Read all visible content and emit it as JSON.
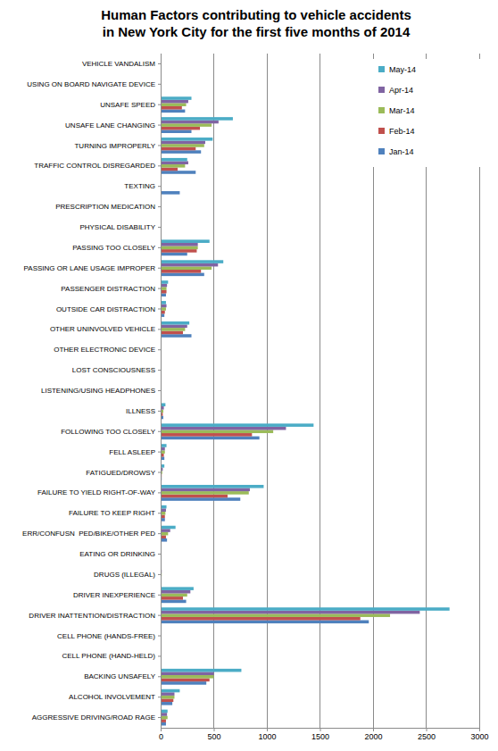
{
  "chart_data": {
    "type": "bar",
    "orientation": "horizontal",
    "title": "Human Factors contributing to vehicle accidents\nin New York City for the first five months of 2014",
    "categories": [
      "VEHICLE VANDALISM",
      "USING ON BOARD NAVIGATE DEVICE",
      "UNSAFE SPEED",
      "UNSAFE LANE CHANGING",
      "TURNING IMPROPERLY",
      "TRAFFIC CONTROL DISREGARDED",
      "TEXTING",
      "PRESCRIPTION MEDICATION",
      "PHYSICAL DISABILITY",
      "PASSING TOO CLOSELY",
      "PASSING OR LANE USAGE IMPROPER",
      "PASSENGER DISTRACTION",
      "OUTSIDE CAR DISTRACTION",
      "OTHER UNINVOLVED VEHICLE",
      "OTHER ELECTRONIC DEVICE",
      "LOST CONSCIOUSNESS",
      "LISTENING/USING HEADPHONES",
      "ILLNESS",
      "FOLLOWING TOO CLOSELY",
      "FELL ASLEEP",
      "FATIGUED/DROWSY",
      "FAILURE TO YIELD RIGHT-OF-WAY",
      "FAILURE TO KEEP RIGHT",
      "ERR/CONFUSN  PED/BIKE/OTHER PED",
      "EATING OR DRINKING",
      "DRUGS (ILLEGAL)",
      "DRIVER INEXPERIENCE",
      "DRIVER INATTENTION/DISTRACTION",
      "CELL PHONE (HANDS-FREE)",
      "CELL PHONE (HAND-HELD)",
      "BACKING UNSAFELY",
      "ALCOHOL INVOLVEMENT",
      "AGGRESSIVE DRIVING/ROAD RAGE"
    ],
    "series": [
      {
        "name": "Jan-14",
        "color": "#4f81bd",
        "values": [
          1,
          1,
          230,
          290,
          380,
          330,
          180,
          3,
          5,
          250,
          410,
          50,
          35,
          290,
          3,
          8,
          1,
          25,
          930,
          35,
          10,
          750,
          40,
          60,
          2,
          8,
          240,
          1960,
          3,
          5,
          430,
          110,
          50
        ]
      },
      {
        "name": "Feb-14",
        "color": "#c0504d",
        "values": [
          1,
          1,
          200,
          370,
          330,
          160,
          3,
          2,
          3,
          340,
          380,
          55,
          40,
          210,
          2,
          6,
          1,
          20,
          860,
          30,
          10,
          630,
          40,
          50,
          2,
          6,
          210,
          1880,
          3,
          5,
          460,
          120,
          50
        ]
      },
      {
        "name": "Mar-14",
        "color": "#9bbb59",
        "values": [
          1,
          1,
          240,
          480,
          410,
          230,
          3,
          2,
          4,
          350,
          480,
          55,
          50,
          230,
          3,
          7,
          1,
          25,
          1060,
          40,
          15,
          830,
          45,
          70,
          2,
          10,
          250,
          2160,
          3,
          6,
          500,
          130,
          65
        ]
      },
      {
        "name": "Apr-14",
        "color": "#8064a2",
        "values": [
          1,
          1,
          260,
          545,
          420,
          260,
          4,
          3,
          5,
          350,
          540,
          60,
          55,
          250,
          3,
          8,
          1,
          30,
          1180,
          40,
          20,
          840,
          50,
          90,
          3,
          10,
          280,
          2440,
          3,
          7,
          500,
          130,
          60
        ]
      },
      {
        "name": "May-14",
        "color": "#4bacc6",
        "values": [
          2,
          1,
          290,
          680,
          490,
          250,
          5,
          3,
          5,
          460,
          590,
          70,
          50,
          270,
          3,
          8,
          1,
          45,
          1440,
          55,
          35,
          970,
          55,
          140,
          3,
          8,
          310,
          2720,
          4,
          8,
          760,
          180,
          65
        ]
      }
    ],
    "xlim": [
      0,
      3000
    ],
    "xticks": [
      0,
      500,
      1000,
      1500,
      2000,
      2500,
      3000
    ],
    "grid": true,
    "legend": "top-right"
  }
}
